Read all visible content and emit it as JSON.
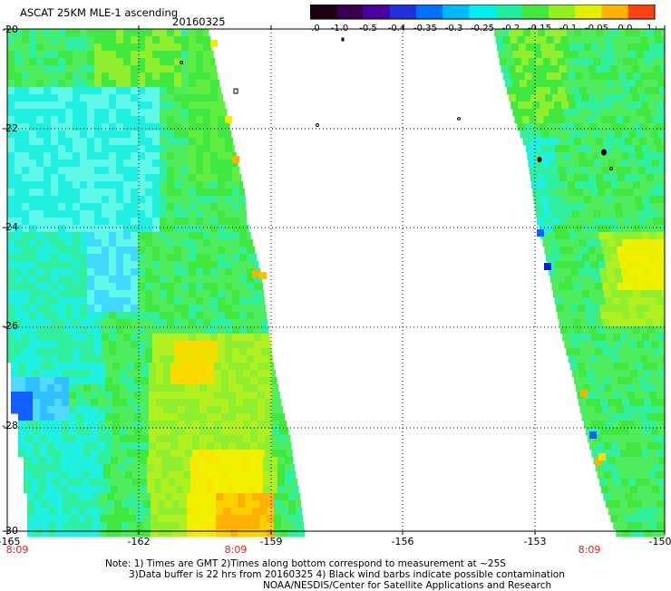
{
  "header": {
    "title": "ASCAT 25KM MLE-1 ascending",
    "date": "20160325"
  },
  "colorbar": {
    "tick_labels": [
      "-3.0",
      "-1.0",
      "-0.5",
      "-0.4",
      "-0.35",
      "-0.3",
      "-0.25",
      "-0.2",
      "-0.15",
      "-0.1",
      "-0.05",
      "0.0",
      "1.0"
    ],
    "colors": [
      "#1a0012",
      "#3a0050",
      "#4a00a0",
      "#2030e0",
      "#0070ff",
      "#00b8ff",
      "#00f0f0",
      "#20f0a0",
      "#40e840",
      "#90f020",
      "#e0f000",
      "#ffb000",
      "#ff4010"
    ]
  },
  "axes": {
    "lat_labels": [
      "-20",
      "-22",
      "-24",
      "-26",
      "-28",
      "-30"
    ],
    "lon_labels": [
      "-165",
      "-162",
      "-159",
      "-156",
      "-153",
      "-150"
    ],
    "time_labels": [
      "8:09",
      "8:09",
      "8:09"
    ]
  },
  "notes": {
    "line1": "Note: 1) Times are GMT 2)Times along bottom correspond to measurement at ~25S",
    "line2": "3)Data buffer is 22 hrs from 20160325 4) Black wind barbs indicate possible contamination",
    "line3": "NOAA/NESDIS/Center for Satellite Applications and Research"
  },
  "palette": {
    "cyan": "#20f0e0",
    "light_cyan": "#60f8e8",
    "teal_green": "#30f0a0",
    "green": "#40e840",
    "lime": "#90f030",
    "yellow": "#f0f000",
    "orange": "#ffb000",
    "blue": "#1060ff",
    "sky": "#30c0ff",
    "dark_blue": "#0040ff"
  }
}
